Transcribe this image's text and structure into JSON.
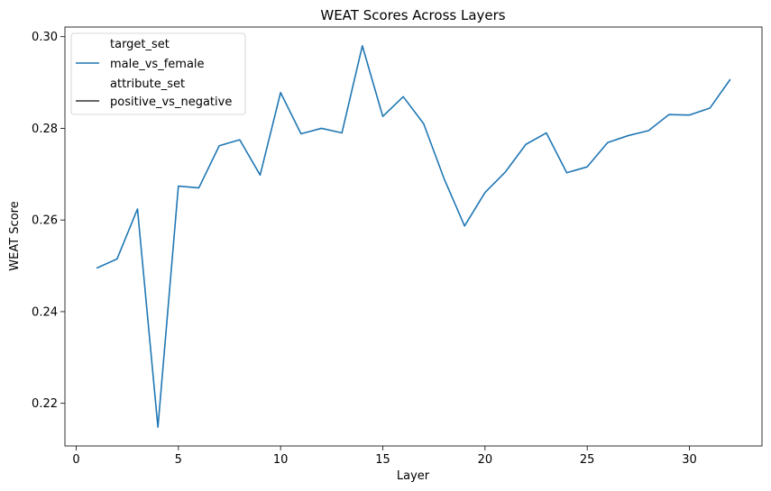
{
  "chart_data": {
    "type": "line",
    "title": "WEAT Scores Across Layers",
    "xlabel": "Layer",
    "ylabel": "WEAT Score",
    "xlim": [
      -0.55,
      33.55
    ],
    "ylim": [
      0.2107,
      0.3021
    ],
    "xticks": [
      0,
      5,
      10,
      15,
      20,
      25,
      30
    ],
    "xtick_labels": [
      "0",
      "5",
      "10",
      "15",
      "20",
      "25",
      "30"
    ],
    "yticks": [
      0.22,
      0.24,
      0.26,
      0.28,
      0.3
    ],
    "ytick_labels": [
      "0.22",
      "0.24",
      "0.26",
      "0.28",
      "0.30"
    ],
    "grid": false,
    "legend_position": "top-left",
    "legend": {
      "entries": [
        {
          "label": "target_set",
          "kind": "header"
        },
        {
          "label": "male_vs_female",
          "kind": "line",
          "color": "#1f77b4"
        },
        {
          "label": "attribute_set",
          "kind": "header"
        },
        {
          "label": "positive_vs_negative",
          "kind": "line",
          "color": "#333333"
        }
      ]
    },
    "series": [
      {
        "name": "male_vs_female",
        "color": "#1f77b4",
        "x": [
          1,
          2,
          3,
          4,
          5,
          6,
          7,
          8,
          9,
          10,
          11,
          12,
          13,
          14,
          15,
          16,
          17,
          18,
          19,
          20,
          21,
          22,
          23,
          24,
          25,
          26,
          27,
          28,
          29,
          30,
          31,
          32
        ],
        "y": [
          0.2495,
          0.2515,
          0.2624,
          0.2148,
          0.2674,
          0.267,
          0.2762,
          0.2775,
          0.2698,
          0.2878,
          0.2788,
          0.28,
          0.279,
          0.298,
          0.2826,
          0.2869,
          0.281,
          0.269,
          0.2587,
          0.266,
          0.2705,
          0.2765,
          0.279,
          0.2703,
          0.2716,
          0.2769,
          0.2784,
          0.2795,
          0.283,
          0.2829,
          0.2844,
          0.2907
        ]
      }
    ]
  }
}
